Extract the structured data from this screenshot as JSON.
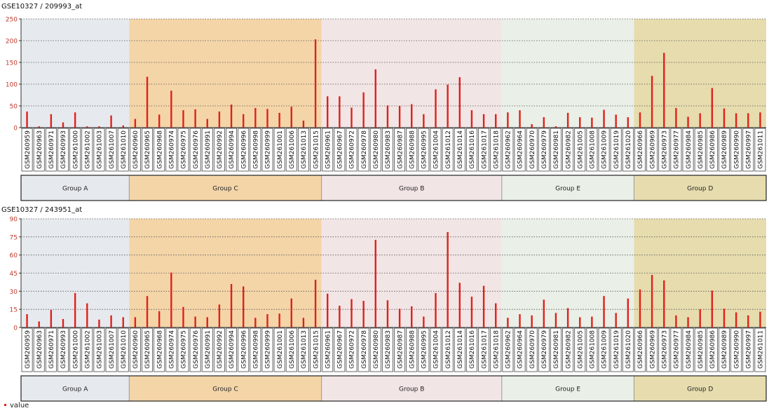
{
  "legend": {
    "marker_color": "#e0201a",
    "label": "value"
  },
  "samples": [
    "GSM260959",
    "GSM260963",
    "GSM260971",
    "GSM260993",
    "GSM261000",
    "GSM261002",
    "GSM261003",
    "GSM261007",
    "GSM261010",
    "GSM260960",
    "GSM260965",
    "GSM260968",
    "GSM260974",
    "GSM260975",
    "GSM260976",
    "GSM260991",
    "GSM260992",
    "GSM260994",
    "GSM260996",
    "GSM260998",
    "GSM260999",
    "GSM261001",
    "GSM261006",
    "GSM261013",
    "GSM261015",
    "GSM260961",
    "GSM260967",
    "GSM260972",
    "GSM260978",
    "GSM260980",
    "GSM260983",
    "GSM260987",
    "GSM260988",
    "GSM260995",
    "GSM261004",
    "GSM261012",
    "GSM261014",
    "GSM261016",
    "GSM261017",
    "GSM261018",
    "GSM260962",
    "GSM260964",
    "GSM260970",
    "GSM260979",
    "GSM260981",
    "GSM260982",
    "GSM261005",
    "GSM261008",
    "GSM261009",
    "GSM261019",
    "GSM261020",
    "GSM260966",
    "GSM260969",
    "GSM260973",
    "GSM260977",
    "GSM260984",
    "GSM260985",
    "GSM260986",
    "GSM260989",
    "GSM260990",
    "GSM260997",
    "GSM261011"
  ],
  "groups": [
    {
      "name": "Group A",
      "count": 9,
      "color": "#e6eaee"
    },
    {
      "name": "Group C",
      "count": 16,
      "color": "#f4d5a8"
    },
    {
      "name": "Group B",
      "count": 15,
      "color": "#f2e5e5"
    },
    {
      "name": "Group E",
      "count": 11,
      "color": "#eaf0e8"
    },
    {
      "name": "Group D",
      "count": 11,
      "color": "#e6dcae"
    }
  ],
  "chart_data": [
    {
      "type": "bar",
      "title": "GSE10327 / 209993_at",
      "ylim": [
        0,
        250
      ],
      "yticks": [
        "0",
        "50",
        "100",
        "150",
        "200",
        "250"
      ],
      "bar_color": "#e0201a",
      "values": [
        37,
        3,
        31,
        12,
        35,
        3,
        3,
        28,
        5,
        20,
        117,
        30,
        85,
        40,
        42,
        20,
        37,
        53,
        31,
        45,
        43,
        34,
        48,
        16,
        203,
        72,
        72,
        46,
        81,
        134,
        51,
        50,
        54,
        31,
        88,
        99,
        116,
        40,
        31,
        31,
        35,
        40,
        8,
        24,
        3,
        34,
        24,
        23,
        41,
        30,
        24,
        35,
        119,
        172,
        45,
        25,
        33,
        91,
        44,
        33,
        33,
        35
      ]
    },
    {
      "type": "bar",
      "title": "GSE10327 / 243951_at",
      "ylim": [
        0,
        90
      ],
      "yticks": [
        "0",
        "15",
        "30",
        "45",
        "60",
        "75",
        "90"
      ],
      "bar_color": "#e0201a",
      "values": [
        11,
        5,
        14.5,
        7,
        28.5,
        20,
        6.5,
        10,
        8.5,
        8.5,
        26,
        13.5,
        45.5,
        17,
        9,
        8.5,
        19,
        36,
        34,
        8,
        11,
        11.5,
        24,
        8,
        39.5,
        28,
        18,
        23.5,
        22,
        72.5,
        22.5,
        15.5,
        17.5,
        9,
        28.5,
        79,
        37,
        25.5,
        34.5,
        20,
        8,
        11,
        10,
        23,
        12,
        16,
        8.5,
        9,
        26,
        12,
        24,
        31.5,
        43.5,
        39,
        10,
        8.5,
        15,
        30.5,
        15.5,
        12.5,
        10,
        13
      ]
    }
  ]
}
